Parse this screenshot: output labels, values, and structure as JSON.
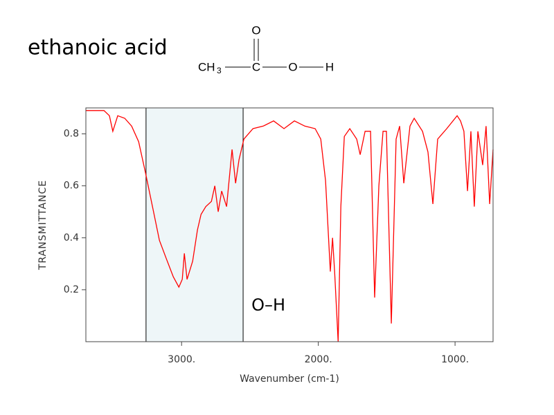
{
  "chart_data": {
    "type": "line",
    "title": "ethanoic acid",
    "xlabel": "Wavenumber (cm-1)",
    "ylabel": "TRANSMITTANCE",
    "color": "#ff0000",
    "x": [
      3700,
      3568,
      3528,
      3503,
      3467,
      3416,
      3365,
      3314,
      3264,
      3213,
      3162,
      3112,
      3061,
      3020,
      2995,
      2980,
      2960,
      2919,
      2884,
      2858,
      2823,
      2782,
      2757,
      2732,
      2707,
      2671,
      2631,
      2605,
      2580,
      2544,
      2478,
      2403,
      2327,
      2251,
      2175,
      2099,
      2023,
      1982,
      1947,
      1912,
      1896,
      1881,
      1855,
      1835,
      1810,
      1770,
      1719,
      1694,
      1658,
      1618,
      1588,
      1557,
      1527,
      1502,
      1466,
      1431,
      1405,
      1375,
      1330,
      1299,
      1238,
      1198,
      1162,
      1127,
      1061,
      985,
      960,
      935,
      909,
      884,
      859,
      833,
      798,
      773,
      747,
      722
    ],
    "values": [
      0.89,
      0.89,
      0.87,
      0.81,
      0.87,
      0.86,
      0.83,
      0.77,
      0.65,
      0.52,
      0.39,
      0.32,
      0.25,
      0.21,
      0.24,
      0.34,
      0.24,
      0.31,
      0.43,
      0.49,
      0.52,
      0.54,
      0.6,
      0.5,
      0.58,
      0.52,
      0.74,
      0.61,
      0.7,
      0.78,
      0.82,
      0.83,
      0.85,
      0.82,
      0.85,
      0.83,
      0.82,
      0.78,
      0.62,
      0.27,
      0.4,
      0.27,
      0.0,
      0.52,
      0.79,
      0.82,
      0.78,
      0.72,
      0.81,
      0.81,
      0.17,
      0.6,
      0.81,
      0.81,
      0.07,
      0.78,
      0.83,
      0.61,
      0.83,
      0.86,
      0.81,
      0.73,
      0.53,
      0.78,
      0.82,
      0.87,
      0.85,
      0.81,
      0.58,
      0.81,
      0.52,
      0.81,
      0.68,
      0.83,
      0.53,
      0.74
    ],
    "xlim": [
      3700,
      722
    ],
    "ylim": [
      0,
      0.9
    ],
    "xticks": [
      {
        "value": 3000,
        "label": "3000."
      },
      {
        "value": 2000,
        "label": "2000."
      },
      {
        "value": 1000,
        "label": "1000."
      }
    ],
    "yticks": [
      0.2,
      0.4,
      0.6,
      0.8
    ],
    "highlight": {
      "range": [
        3260,
        2550
      ],
      "label": "O–H",
      "color": "#eef6f8"
    }
  },
  "molecule": {
    "methyl": "CH",
    "subscript": "3",
    "carbon": "C",
    "carbonyl_oxygen": "O",
    "oxygen": "O",
    "hydrogen": "H"
  }
}
